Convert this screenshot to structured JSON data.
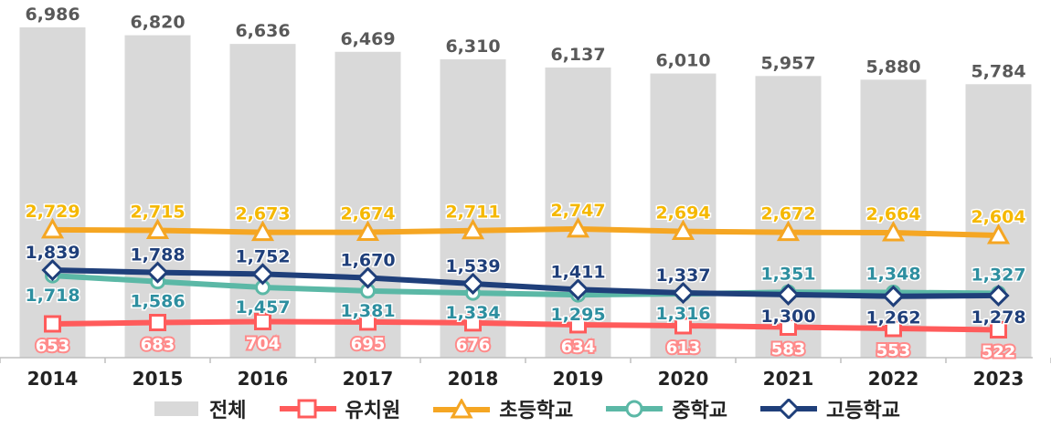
{
  "chart_data": {
    "type": "bar",
    "categories": [
      "2014",
      "2015",
      "2016",
      "2017",
      "2018",
      "2019",
      "2020",
      "2021",
      "2022",
      "2023"
    ],
    "bar_series": {
      "name": "전체",
      "values": [
        6986,
        6820,
        6636,
        6469,
        6310,
        6137,
        6010,
        5957,
        5880,
        5784
      ],
      "labels": [
        "6,986",
        "6,820",
        "6,636",
        "6,469",
        "6,310",
        "6,137",
        "6,010",
        "5,957",
        "5,880",
        "5,784"
      ],
      "color": "#d9d9d9",
      "label_color": "#595959"
    },
    "line_series": [
      {
        "key": "kindergarten",
        "name": "유치원",
        "values": [
          653,
          683,
          704,
          695,
          676,
          634,
          613,
          583,
          553,
          522
        ],
        "labels": [
          "653",
          "683",
          "704",
          "695",
          "676",
          "634",
          "613",
          "583",
          "553",
          "522"
        ],
        "color": "#ff5b5b",
        "label_color": "#ffffff",
        "label_bg": "#ff8a8a",
        "marker": "square"
      },
      {
        "key": "elementary",
        "name": "초등학교",
        "values": [
          2729,
          2715,
          2673,
          2674,
          2711,
          2747,
          2694,
          2672,
          2664,
          2604
        ],
        "labels": [
          "2,729",
          "2,715",
          "2,673",
          "2,674",
          "2,711",
          "2,747",
          "2,694",
          "2,672",
          "2,664",
          "2,604"
        ],
        "color": "#f5a623",
        "label_color": "#f5b800",
        "marker": "triangle"
      },
      {
        "key": "middle",
        "name": "중학교",
        "values": [
          1718,
          1586,
          1457,
          1381,
          1334,
          1295,
          1316,
          1351,
          1348,
          1327
        ],
        "labels": [
          "1,718",
          "1,586",
          "1,457",
          "1,381",
          "1,334",
          "1,295",
          "1,316",
          "1,351",
          "1,348",
          "1,327"
        ],
        "color": "#5bb8a6",
        "label_color": "#2e8fa0",
        "marker": "circle"
      },
      {
        "key": "high",
        "name": "고등학교",
        "values": [
          1839,
          1788,
          1752,
          1670,
          1539,
          1411,
          1337,
          1300,
          1262,
          1278
        ],
        "labels": [
          "1,839",
          "1,788",
          "1,752",
          "1,670",
          "1,539",
          "1,411",
          "1,337",
          "1,300",
          "1,262",
          "1,278"
        ],
        "color": "#1f3f7a",
        "label_color": "#1f3f7a",
        "marker": "diamond"
      }
    ],
    "legend": [
      "전체",
      "유치원",
      "초등학교",
      "중학교",
      "고등학교"
    ],
    "legend_position": "bottom",
    "grid": false
  }
}
